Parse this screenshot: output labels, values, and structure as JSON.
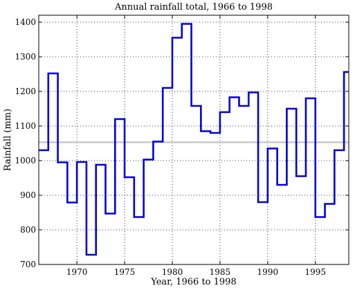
{
  "chart_data": {
    "type": "line",
    "step": true,
    "title": "Annual rainfall total, 1966 to 1998",
    "xlabel": "Year, 1966 to 1998",
    "ylabel": "Rainfall (mm)",
    "xlim": [
      1966,
      1998.5
    ],
    "ylim": [
      700,
      1420
    ],
    "xticks": [
      1970,
      1975,
      1980,
      1985,
      1990,
      1995
    ],
    "yticks": [
      700,
      800,
      900,
      1000,
      1100,
      1200,
      1300,
      1400
    ],
    "grid": true,
    "series": [
      {
        "color": "#0000e0",
        "x": [
          1966,
          1967,
          1968,
          1969,
          1970,
          1971,
          1972,
          1973,
          1974,
          1975,
          1976,
          1977,
          1978,
          1979,
          1980,
          1981,
          1982,
          1983,
          1984,
          1985,
          1986,
          1987,
          1988,
          1989,
          1990,
          1991,
          1992,
          1993,
          1994,
          1995,
          1996,
          1997,
          1998
        ],
        "values": [
          1030,
          1252,
          995,
          879,
          996,
          728,
          988,
          847,
          1120,
          952,
          837,
          1003,
          1055,
          1210,
          1355,
          1395,
          1158,
          1085,
          1080,
          1140,
          1183,
          1158,
          1197,
          880,
          1035,
          930,
          1150,
          955,
          1180,
          837,
          875,
          1030,
          1256
        ]
      }
    ],
    "reference_line": {
      "y": 1053,
      "color": "#c8c8c8"
    }
  }
}
